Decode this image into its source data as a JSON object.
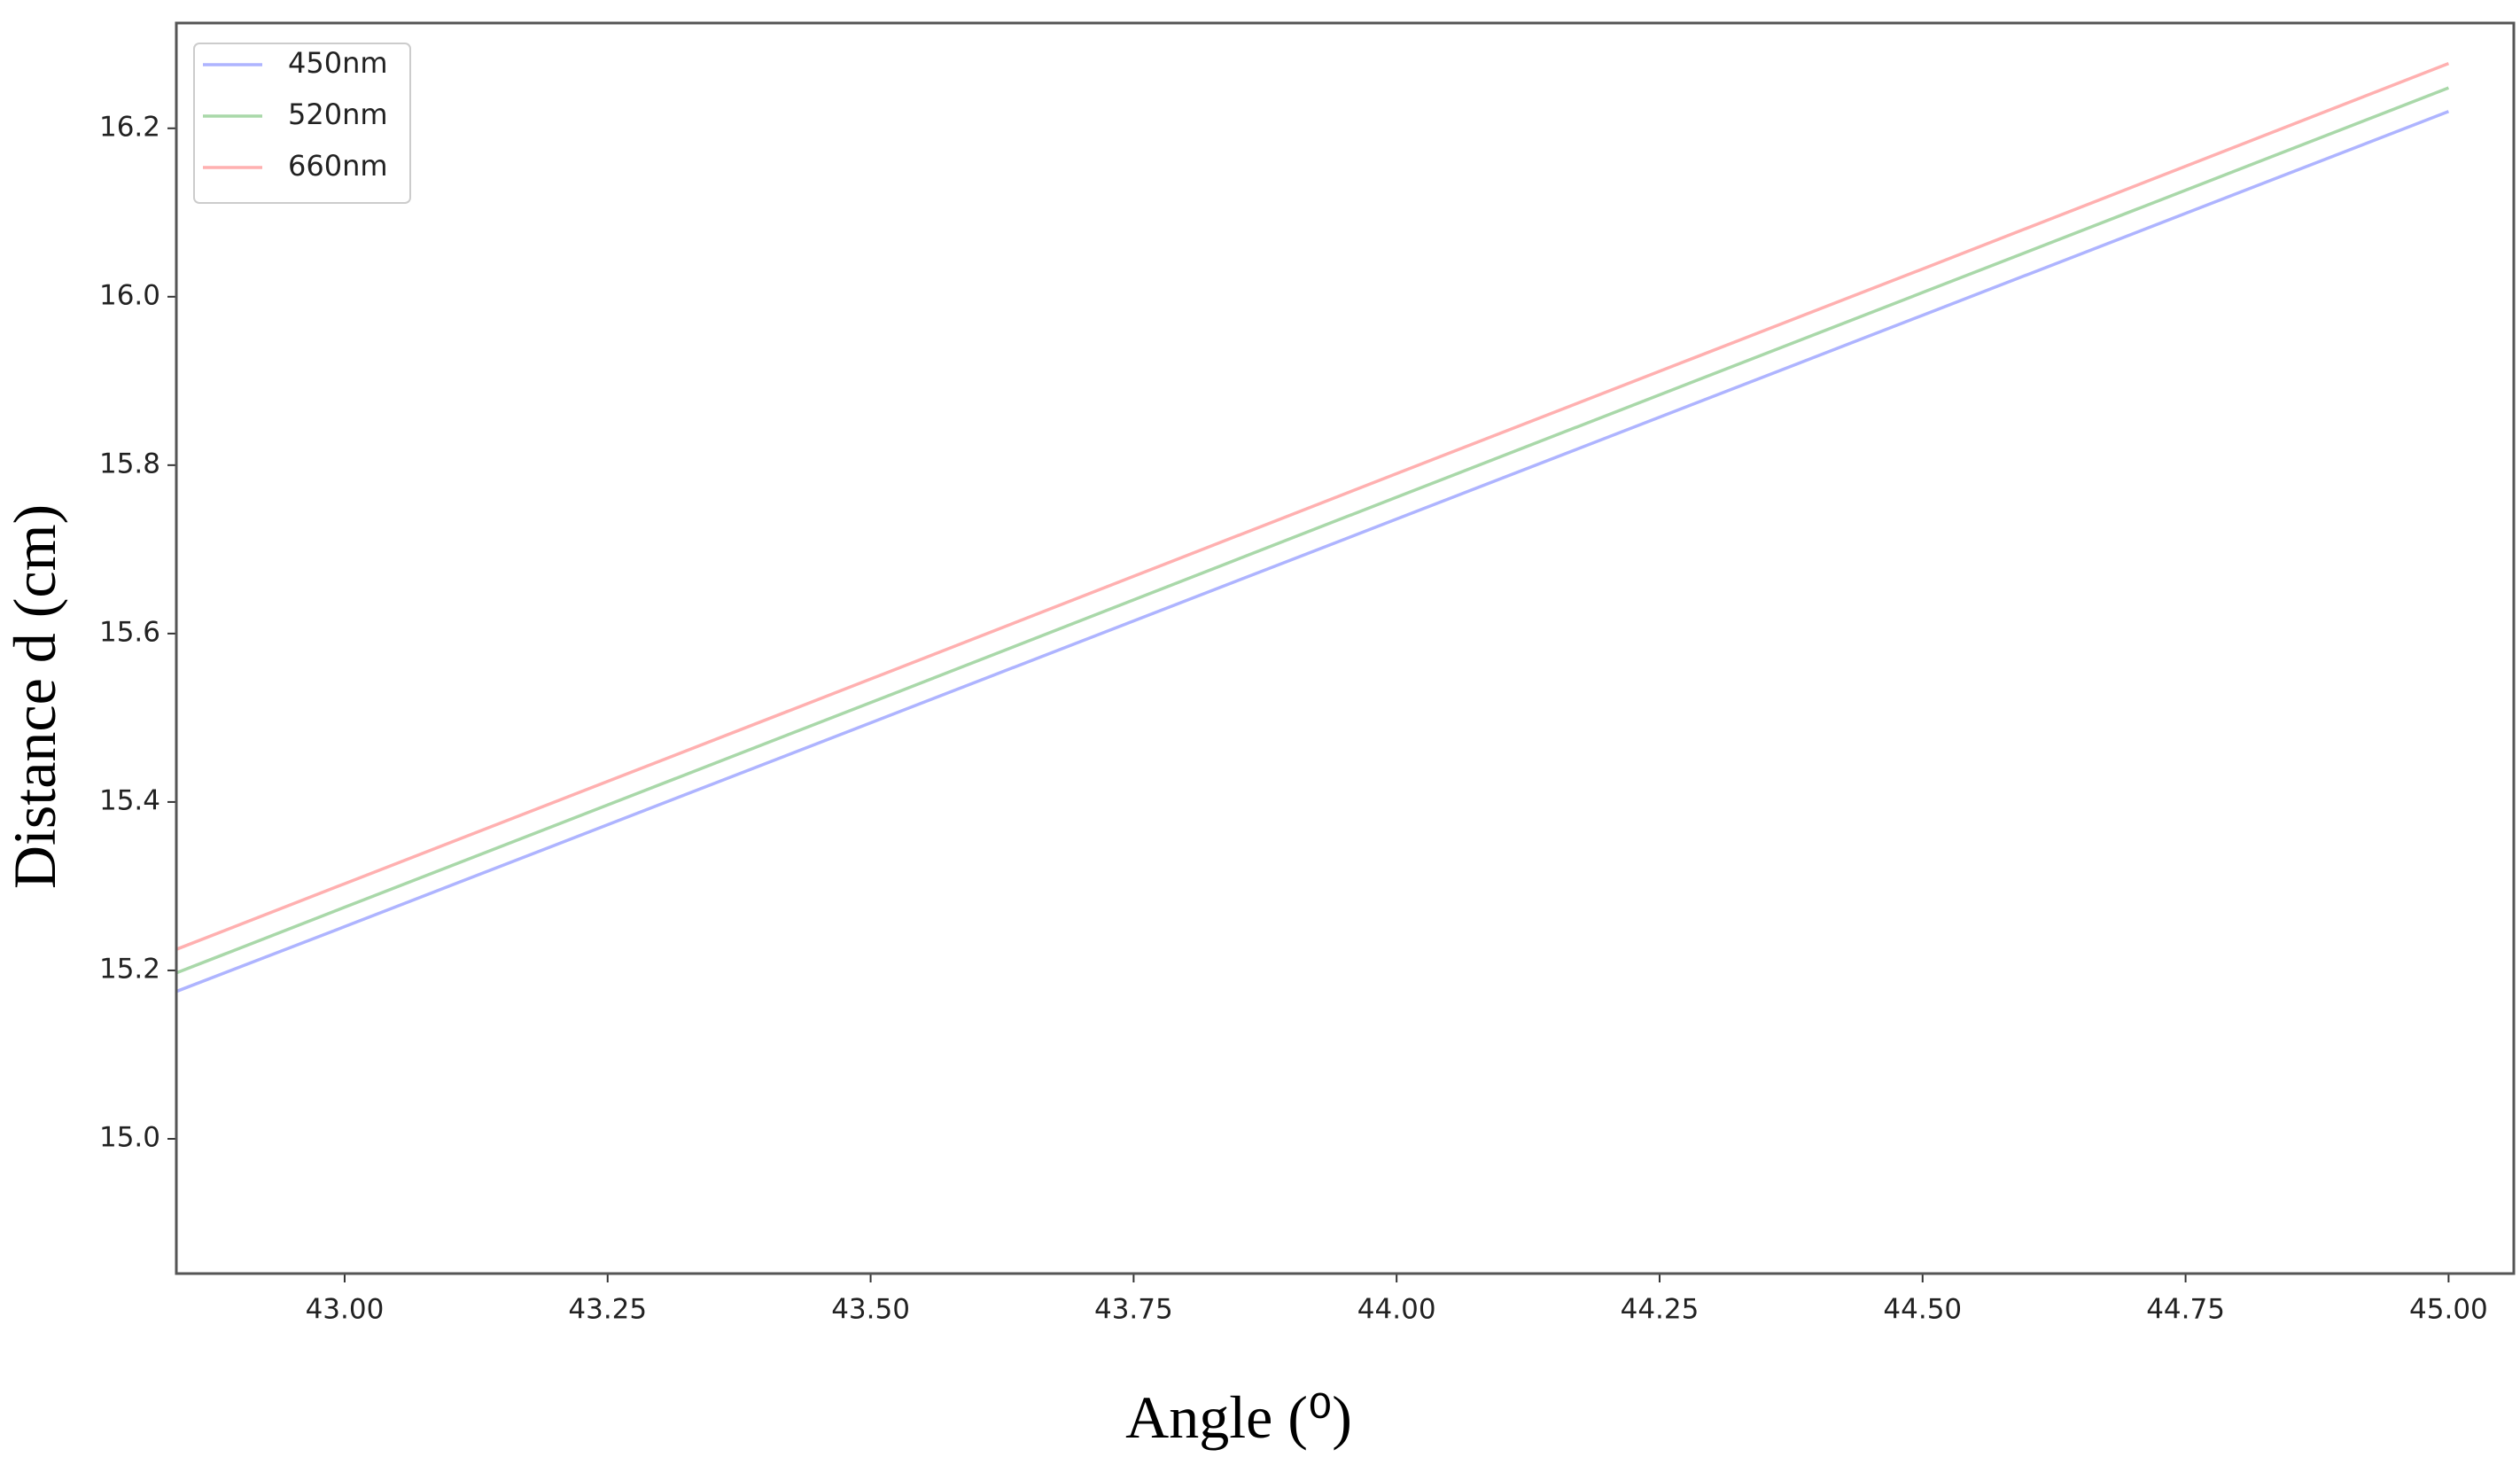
{
  "chart_data": {
    "type": "line",
    "x_label": "Angle (⁰)",
    "y_label": "Distance d (cm)",
    "x": [
      42.84,
      43.0,
      43.5,
      44.0,
      44.5,
      45.0
    ],
    "series": [
      {
        "name": "450nm",
        "color": "#aeb4ff",
        "values": [
          15.175,
          15.252,
          15.494,
          15.736,
          15.978,
          16.22
        ]
      },
      {
        "name": "520nm",
        "color": "#a9d8a9",
        "values": [
          15.197,
          15.275,
          15.518,
          15.762,
          16.005,
          16.248
        ]
      },
      {
        "name": "660nm",
        "color": "#ffb0b0",
        "values": [
          15.225,
          15.303,
          15.546,
          15.79,
          16.033,
          16.277
        ]
      }
    ],
    "xlim": [
      42.84,
      45.062
    ],
    "ylim": [
      14.84,
      16.325
    ],
    "xticks": [
      {
        "value": 43.0,
        "label": "43.00"
      },
      {
        "value": 43.25,
        "label": "43.25"
      },
      {
        "value": 43.5,
        "label": "43.50"
      },
      {
        "value": 43.75,
        "label": "43.75"
      },
      {
        "value": 44.0,
        "label": "44.00"
      },
      {
        "value": 44.25,
        "label": "44.25"
      },
      {
        "value": 44.5,
        "label": "44.50"
      },
      {
        "value": 44.75,
        "label": "44.75"
      },
      {
        "value": 45.0,
        "label": "45.00"
      }
    ],
    "yticks": [
      {
        "value": 15.0,
        "label": "15.0"
      },
      15.2,
      15.4,
      15.6,
      15.8,
      {
        "value": 16.0,
        "label": "16.0"
      },
      16.2
    ],
    "legend": "upper left",
    "grid": false
  }
}
